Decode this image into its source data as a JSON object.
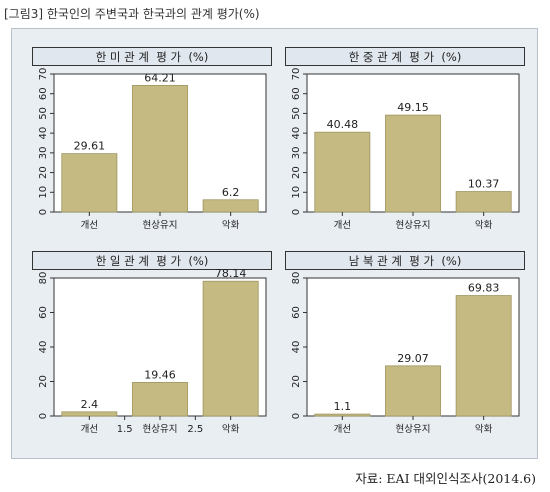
{
  "figure": {
    "title": "[그림3] 한국인의 주변국과 한국과의 관계 평가(%)",
    "source": "자료: EAI 대외인식조사(2014.6)"
  },
  "colors": {
    "bar": "#c5bb82",
    "bar_stroke": "#9d9460",
    "panel_bg": "#e9eef3",
    "plot_bg": "#ffffff",
    "header_bg": "#e1e7ee"
  },
  "chart_data": [
    {
      "type": "bar",
      "title": "한 미 관 계  평 가  (%)",
      "categories": [
        "개선",
        "현상유지",
        "악화"
      ],
      "values": [
        29.61,
        64.21,
        6.2
      ],
      "value_labels": [
        "29.61",
        "64.21",
        "6.2"
      ],
      "ylim": [
        0,
        70
      ],
      "yticks": [
        0,
        10,
        20,
        30,
        40,
        50,
        60,
        70
      ],
      "extra_xticks": [],
      "grid": false
    },
    {
      "type": "bar",
      "title": "한 중 관 계  평 가  (%)",
      "categories": [
        "개선",
        "현상유지",
        "악화"
      ],
      "values": [
        40.48,
        49.15,
        10.37
      ],
      "value_labels": [
        "40.48",
        "49.15",
        "10.37"
      ],
      "ylim": [
        0,
        70
      ],
      "yticks": [
        0,
        10,
        20,
        30,
        40,
        50,
        60,
        70
      ],
      "extra_xticks": [],
      "grid": false
    },
    {
      "type": "bar",
      "title": "한 일 관 계  평 가  (%)",
      "categories": [
        "개선",
        "현상유지",
        "악화"
      ],
      "values": [
        2.4,
        19.46,
        78.14
      ],
      "value_labels": [
        "2.4",
        "19.46",
        "78.14"
      ],
      "ylim": [
        0,
        80
      ],
      "yticks": [
        0,
        20,
        40,
        60,
        80
      ],
      "extra_xticks": [
        "1.5",
        "2.5"
      ],
      "grid": false
    },
    {
      "type": "bar",
      "title": "남 북 관 계  평 가  (%)",
      "categories": [
        "개선",
        "현상유지",
        "악화"
      ],
      "values": [
        1.1,
        29.07,
        69.83
      ],
      "value_labels": [
        "1.1",
        "29.07",
        "69.83"
      ],
      "ylim": [
        0,
        80
      ],
      "yticks": [
        0,
        20,
        40,
        60,
        80
      ],
      "extra_xticks": [],
      "grid": false
    }
  ]
}
